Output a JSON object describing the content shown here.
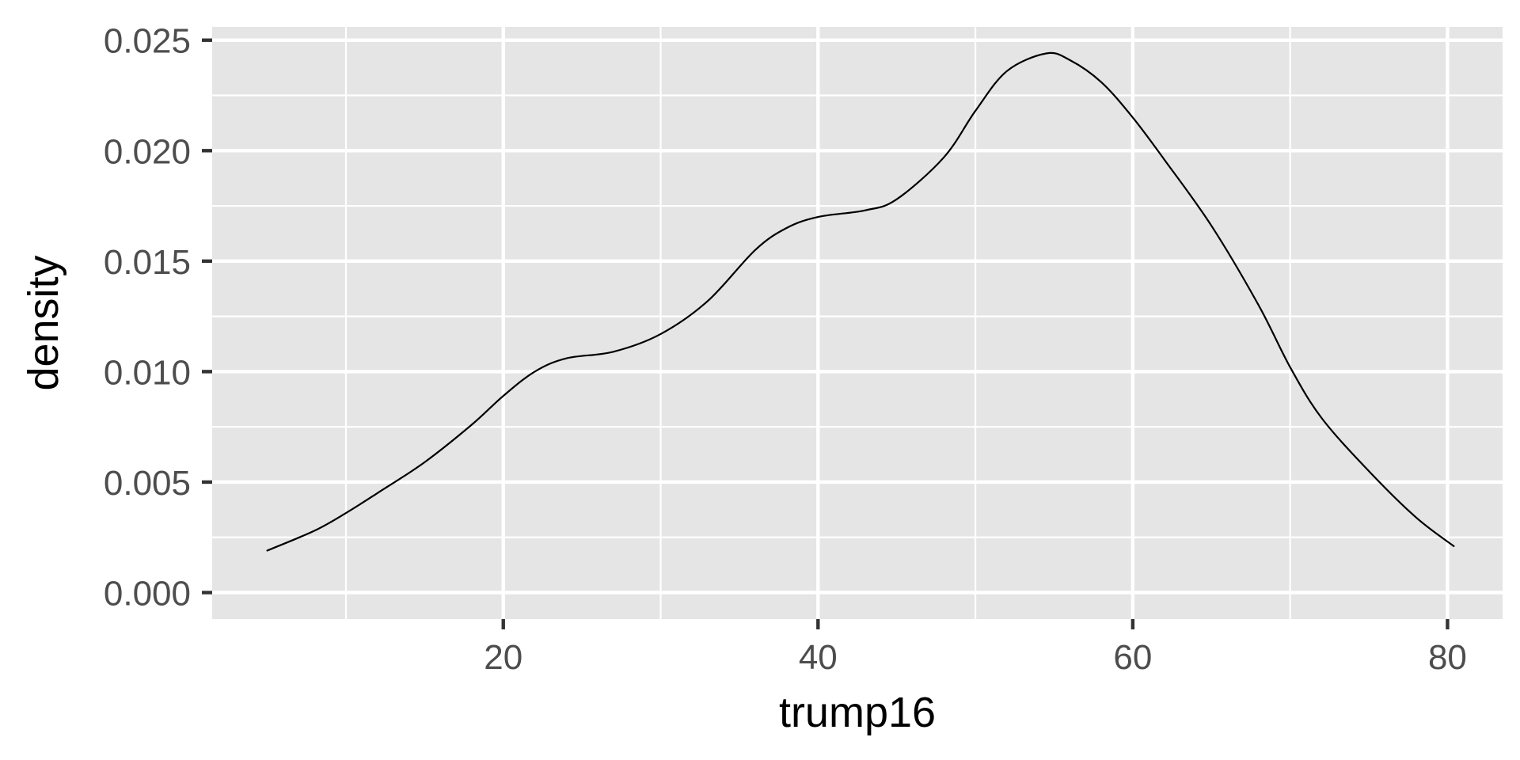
{
  "chart_data": {
    "type": "line",
    "title": "",
    "xlabel": "trump16",
    "ylabel": "density",
    "xlim": [
      1.5,
      83.5
    ],
    "ylim": [
      -0.0012,
      0.0256
    ],
    "x_ticks": [
      20,
      40,
      60,
      80
    ],
    "y_ticks": [
      0.0,
      0.005,
      0.01,
      0.015,
      0.02,
      0.025
    ],
    "x_tick_labels": [
      "20",
      "40",
      "60",
      "80"
    ],
    "y_tick_labels": [
      "0.000",
      "0.005",
      "0.010",
      "0.015",
      "0.020",
      "0.025"
    ],
    "grid": true,
    "legend": "none",
    "series": [
      {
        "values": [
          {
            "x": 5.0,
            "y": 0.0019
          },
          {
            "x": 8.0,
            "y": 0.0028
          },
          {
            "x": 10.0,
            "y": 0.0036
          },
          {
            "x": 12.0,
            "y": 0.0045
          },
          {
            "x": 15.0,
            "y": 0.0059
          },
          {
            "x": 18.0,
            "y": 0.0076
          },
          {
            "x": 20.0,
            "y": 0.0089
          },
          {
            "x": 22.0,
            "y": 0.01
          },
          {
            "x": 24.0,
            "y": 0.0106
          },
          {
            "x": 27.0,
            "y": 0.0109
          },
          {
            "x": 30.0,
            "y": 0.0117
          },
          {
            "x": 33.0,
            "y": 0.0132
          },
          {
            "x": 36.0,
            "y": 0.0155
          },
          {
            "x": 38.0,
            "y": 0.0165
          },
          {
            "x": 40.0,
            "y": 0.017
          },
          {
            "x": 43.0,
            "y": 0.0173
          },
          {
            "x": 45.0,
            "y": 0.0178
          },
          {
            "x": 48.0,
            "y": 0.0197
          },
          {
            "x": 50.0,
            "y": 0.0218
          },
          {
            "x": 52.0,
            "y": 0.0236
          },
          {
            "x": 54.5,
            "y": 0.0244
          },
          {
            "x": 56.0,
            "y": 0.0241
          },
          {
            "x": 58.0,
            "y": 0.0231
          },
          {
            "x": 60.0,
            "y": 0.0215
          },
          {
            "x": 62.0,
            "y": 0.0196
          },
          {
            "x": 65.0,
            "y": 0.0166
          },
          {
            "x": 68.0,
            "y": 0.013
          },
          {
            "x": 70.0,
            "y": 0.0102
          },
          {
            "x": 72.0,
            "y": 0.0079
          },
          {
            "x": 75.0,
            "y": 0.0055
          },
          {
            "x": 78.0,
            "y": 0.0034
          },
          {
            "x": 80.4,
            "y": 0.0021
          }
        ]
      }
    ],
    "colors": {
      "panel_bg": "#e5e5e5",
      "grid": "#ffffff",
      "line": "#000000",
      "ticks": "#333333",
      "tick_text": "#4d4d4d"
    }
  }
}
